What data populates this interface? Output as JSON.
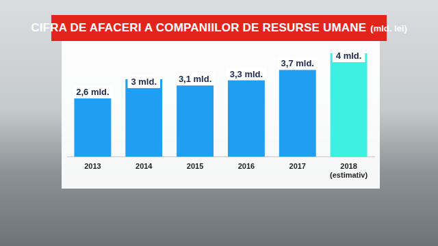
{
  "chart_data": {
    "type": "bar",
    "title": "CIFRA DE AFACERI A COMPANIILOR DE RESURSE UMANE",
    "subtitle": "(mld. lei)",
    "categories": [
      "2013",
      "2014",
      "2015",
      "2016",
      "2017",
      "2018\n(estimativ)"
    ],
    "values": [
      2.6,
      3,
      3.1,
      3.3,
      3.7,
      4
    ],
    "value_labels": [
      "2,6 mld.",
      "3 mld.",
      "3,1 mld.",
      "3,3 mld.",
      "3,7 mld.",
      "4 mld."
    ],
    "colors": [
      "#1f9ef2",
      "#1f9ef2",
      "#1f9ef2",
      "#1f9ef2",
      "#1f9ef2",
      "#3ef0e2"
    ],
    "data_labels": true,
    "grid": false,
    "tick_labels": "x"
  }
}
